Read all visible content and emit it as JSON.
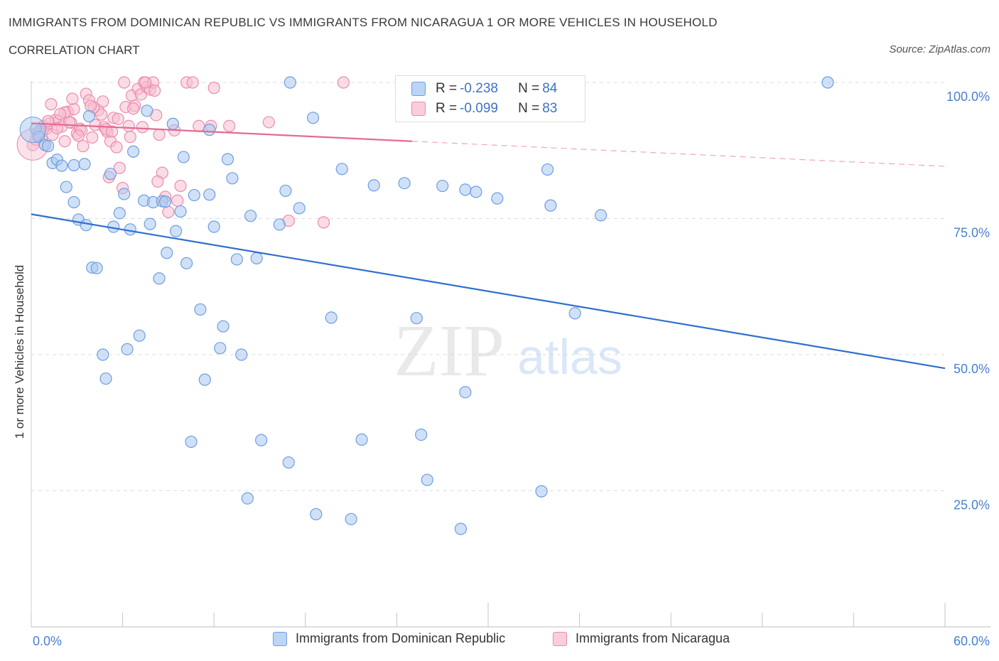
{
  "header": {
    "title": "IMMIGRANTS FROM DOMINICAN REPUBLIC VS IMMIGRANTS FROM NICARAGUA 1 OR MORE VEHICLES IN HOUSEHOLD",
    "subtitle": "CORRELATION CHART",
    "source": "Source: ZipAtlas.com"
  },
  "watermark": {
    "zip": "ZIP",
    "atlas": "atlas"
  },
  "stats": {
    "rows": [
      {
        "r_label": "R = ",
        "r_value": "-0.238",
        "n_label": "N = ",
        "n_value": "84"
      },
      {
        "r_label": "R = ",
        "r_value": "-0.099",
        "n_label": "N = ",
        "n_value": "83"
      }
    ]
  },
  "legend": {
    "items": [
      {
        "label": "Immigrants from Dominican Republic"
      },
      {
        "label": "Immigrants from Nicaragua"
      }
    ]
  },
  "chart_data": {
    "type": "scatter",
    "ylabel": "1 or more Vehicles in Household",
    "xlabel": "",
    "xlim": [
      0,
      60
    ],
    "ylim": [
      0,
      100
    ],
    "x_tick_labels": {
      "min": "0.0%",
      "max": "60.0%"
    },
    "y_ticks": [
      {
        "value": 100,
        "label": "100.0%"
      },
      {
        "value": 75,
        "label": "75.0%"
      },
      {
        "value": 50,
        "label": "50.0%"
      },
      {
        "value": 25,
        "label": "25.0%"
      }
    ],
    "grid": true,
    "colors": {
      "blue_fill": "#a9c8f0",
      "blue_stroke": "#6d9ee0",
      "blue_line": "#2f6fcf",
      "pink_fill": "#f6bfd1",
      "pink_stroke": "#ec8cab",
      "pink_line": "#e56a95",
      "tick_label": "#4a7fd0"
    },
    "series": [
      {
        "name": "Immigrants from Dominican Republic",
        "color": "blue",
        "trend": {
          "x0": 0,
          "y0": 75.8,
          "x1": 60,
          "y1": 47.5
        },
        "points": [
          [
            0.3,
            91.5
          ],
          [
            0.5,
            90.0
          ],
          [
            0.9,
            88.5
          ],
          [
            1.1,
            88.3
          ],
          [
            1.4,
            85.2
          ],
          [
            1.7,
            85.8
          ],
          [
            2.0,
            84.7
          ],
          [
            2.3,
            80.8
          ],
          [
            2.8,
            84.8
          ],
          [
            3.5,
            85.0
          ],
          [
            2.8,
            78.0
          ],
          [
            3.1,
            74.8
          ],
          [
            3.6,
            73.8
          ],
          [
            4.0,
            66.0
          ],
          [
            4.3,
            65.9
          ],
          [
            4.7,
            50.0
          ],
          [
            4.9,
            45.6
          ],
          [
            5.2,
            83.2
          ],
          [
            5.4,
            73.5
          ],
          [
            5.8,
            76.0
          ],
          [
            6.1,
            79.5
          ],
          [
            6.3,
            51.0
          ],
          [
            6.5,
            73.0
          ],
          [
            6.7,
            87.3
          ],
          [
            7.1,
            53.5
          ],
          [
            7.4,
            78.3
          ],
          [
            7.6,
            94.8
          ],
          [
            7.8,
            74.0
          ],
          [
            8.0,
            78.0
          ],
          [
            8.4,
            64.0
          ],
          [
            8.6,
            78.2
          ],
          [
            8.9,
            68.7
          ],
          [
            9.3,
            92.4
          ],
          [
            9.5,
            72.7
          ],
          [
            9.8,
            76.3
          ],
          [
            10.0,
            86.3
          ],
          [
            10.2,
            66.8
          ],
          [
            10.5,
            34.0
          ],
          [
            10.7,
            79.3
          ],
          [
            11.1,
            58.3
          ],
          [
            11.4,
            45.4
          ],
          [
            11.7,
            91.3
          ],
          [
            11.7,
            79.4
          ],
          [
            12.0,
            73.5
          ],
          [
            12.4,
            51.2
          ],
          [
            12.6,
            55.2
          ],
          [
            12.9,
            85.9
          ],
          [
            13.2,
            82.4
          ],
          [
            13.5,
            67.5
          ],
          [
            13.8,
            50.0
          ],
          [
            14.2,
            23.6
          ],
          [
            14.4,
            75.5
          ],
          [
            14.8,
            67.7
          ],
          [
            15.1,
            34.3
          ],
          [
            16.3,
            73.9
          ],
          [
            16.7,
            80.1
          ],
          [
            17.0,
            100.0
          ],
          [
            17.6,
            76.9
          ],
          [
            16.9,
            30.2
          ],
          [
            18.7,
            20.7
          ],
          [
            18.5,
            93.5
          ],
          [
            19.7,
            56.8
          ],
          [
            20.4,
            84.1
          ],
          [
            21.0,
            19.8
          ],
          [
            21.7,
            34.4
          ],
          [
            22.5,
            81.1
          ],
          [
            24.5,
            81.5
          ],
          [
            25.3,
            56.7
          ],
          [
            25.6,
            35.3
          ],
          [
            26.0,
            27.0
          ],
          [
            27.0,
            81.0
          ],
          [
            28.2,
            18.0
          ],
          [
            28.5,
            43.1
          ],
          [
            28.5,
            80.3
          ],
          [
            29.2,
            79.9
          ],
          [
            30.6,
            78.7
          ],
          [
            33.5,
            24.9
          ],
          [
            33.9,
            84.0
          ],
          [
            34.1,
            77.4
          ],
          [
            35.7,
            57.6
          ],
          [
            37.4,
            75.6
          ],
          [
            52.3,
            100.0
          ],
          [
            8.8,
            78.1
          ],
          [
            3.8,
            93.8
          ]
        ]
      },
      {
        "name": "Immigrants from Nicaragua",
        "color": "pink",
        "trend": {
          "x0": 0,
          "y0": 92.5,
          "x1": 25,
          "y1": 89.2
        },
        "trend_extension": {
          "x0": 25,
          "y0": 89.2,
          "x1": 60,
          "y1": 84.6
        },
        "points": [
          [
            0.1,
            88.5
          ],
          [
            0.3,
            89.5
          ],
          [
            0.4,
            90.6
          ],
          [
            0.6,
            91.2
          ],
          [
            0.8,
            92.0
          ],
          [
            1.0,
            91.5
          ],
          [
            1.2,
            92.5
          ],
          [
            1.4,
            90.4
          ],
          [
            1.6,
            93.1
          ],
          [
            1.8,
            92.9
          ],
          [
            2.0,
            91.9
          ],
          [
            2.2,
            89.2
          ],
          [
            2.4,
            94.6
          ],
          [
            2.6,
            92.6
          ],
          [
            2.8,
            95.1
          ],
          [
            3.0,
            90.6
          ],
          [
            3.2,
            91.5
          ],
          [
            3.4,
            88.3
          ],
          [
            3.6,
            97.9
          ],
          [
            3.8,
            96.7
          ],
          [
            4.0,
            89.9
          ],
          [
            4.2,
            92.2
          ],
          [
            4.4,
            94.9
          ],
          [
            4.6,
            94.1
          ],
          [
            4.8,
            91.8
          ],
          [
            5.0,
            90.9
          ],
          [
            5.2,
            89.2
          ],
          [
            5.4,
            93.5
          ],
          [
            5.6,
            88.1
          ],
          [
            5.8,
            84.3
          ],
          [
            6.0,
            80.6
          ],
          [
            6.2,
            95.5
          ],
          [
            6.4,
            92.0
          ],
          [
            6.6,
            97.6
          ],
          [
            6.8,
            95.7
          ],
          [
            7.0,
            98.8
          ],
          [
            7.2,
            97.8
          ],
          [
            7.4,
            100.0
          ],
          [
            7.6,
            99.1
          ],
          [
            7.8,
            98.7
          ],
          [
            8.0,
            100.0
          ],
          [
            8.2,
            94.0
          ],
          [
            8.4,
            90.4
          ],
          [
            8.6,
            83.4
          ],
          [
            8.8,
            79.0
          ],
          [
            9.0,
            76.2
          ],
          [
            9.4,
            91.2
          ],
          [
            9.8,
            81.0
          ],
          [
            10.2,
            100.0
          ],
          [
            10.6,
            100.0
          ],
          [
            11.0,
            92.0
          ],
          [
            11.8,
            92.0
          ],
          [
            12.0,
            99.0
          ],
          [
            13.0,
            92.0
          ],
          [
            15.6,
            92.7
          ],
          [
            16.9,
            74.6
          ],
          [
            19.2,
            74.3
          ],
          [
            20.5,
            100.0
          ],
          [
            6.1,
            100.0
          ],
          [
            1.3,
            96.0
          ],
          [
            2.2,
            94.5
          ],
          [
            2.7,
            97.0
          ],
          [
            3.3,
            91.2
          ],
          [
            4.1,
            95.4
          ],
          [
            4.9,
            91.4
          ],
          [
            5.7,
            93.3
          ],
          [
            6.5,
            90.0
          ],
          [
            7.3,
            91.8
          ],
          [
            8.1,
            98.5
          ],
          [
            1.9,
            94.2
          ],
          [
            0.5,
            90.9
          ],
          [
            1.1,
            92.9
          ],
          [
            1.7,
            91.6
          ],
          [
            2.5,
            92.7
          ],
          [
            3.1,
            90.2
          ],
          [
            3.9,
            95.7
          ],
          [
            4.7,
            96.5
          ],
          [
            5.3,
            91.0
          ],
          [
            6.7,
            95.2
          ],
          [
            7.5,
            100.0
          ],
          [
            8.3,
            81.8
          ],
          [
            9.6,
            78.3
          ],
          [
            5.1,
            82.6
          ]
        ]
      }
    ]
  }
}
